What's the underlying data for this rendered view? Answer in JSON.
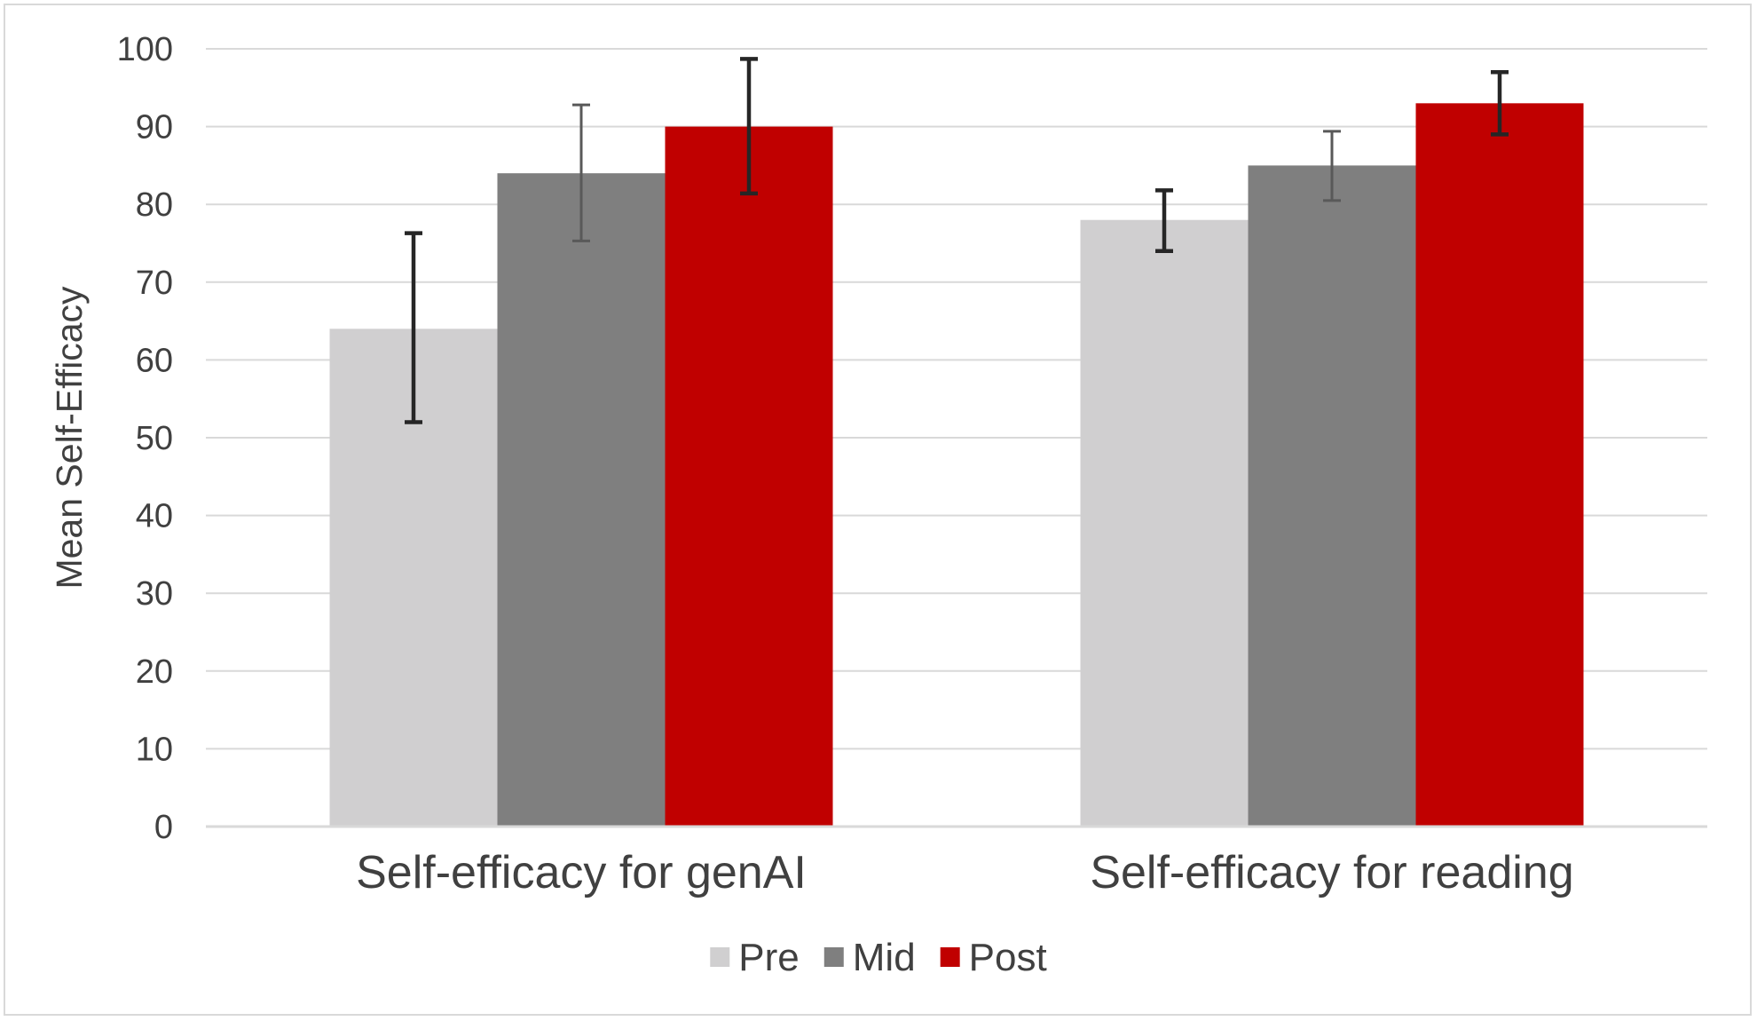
{
  "chart_data": {
    "type": "bar",
    "title": "",
    "xlabel": "",
    "ylabel": "Mean Self-Efficacy",
    "ylim": [
      0,
      100
    ],
    "yticks": [
      0,
      10,
      20,
      30,
      40,
      50,
      60,
      70,
      80,
      90,
      100
    ],
    "grid": true,
    "legend_position": "bottom",
    "categories": [
      "Self-efficacy for genAI",
      "Self-efficacy for reading"
    ],
    "series": [
      {
        "name": "Pre",
        "color": "#d0cfd0",
        "values": [
          64,
          78
        ],
        "error_low": [
          52,
          74
        ],
        "error_high": [
          76.3,
          81.8
        ],
        "error_color": "#262626"
      },
      {
        "name": "Mid",
        "color": "#7f7f7f",
        "values": [
          84,
          85
        ],
        "error_low": [
          75.3,
          80.5
        ],
        "error_high": [
          92.8,
          89.4
        ],
        "error_color": "#595959"
      },
      {
        "name": "Post",
        "color": "#c00000",
        "values": [
          90,
          93
        ],
        "error_low": [
          81.4,
          89
        ],
        "error_high": [
          98.7,
          97
        ],
        "error_color": "#262626"
      }
    ]
  }
}
